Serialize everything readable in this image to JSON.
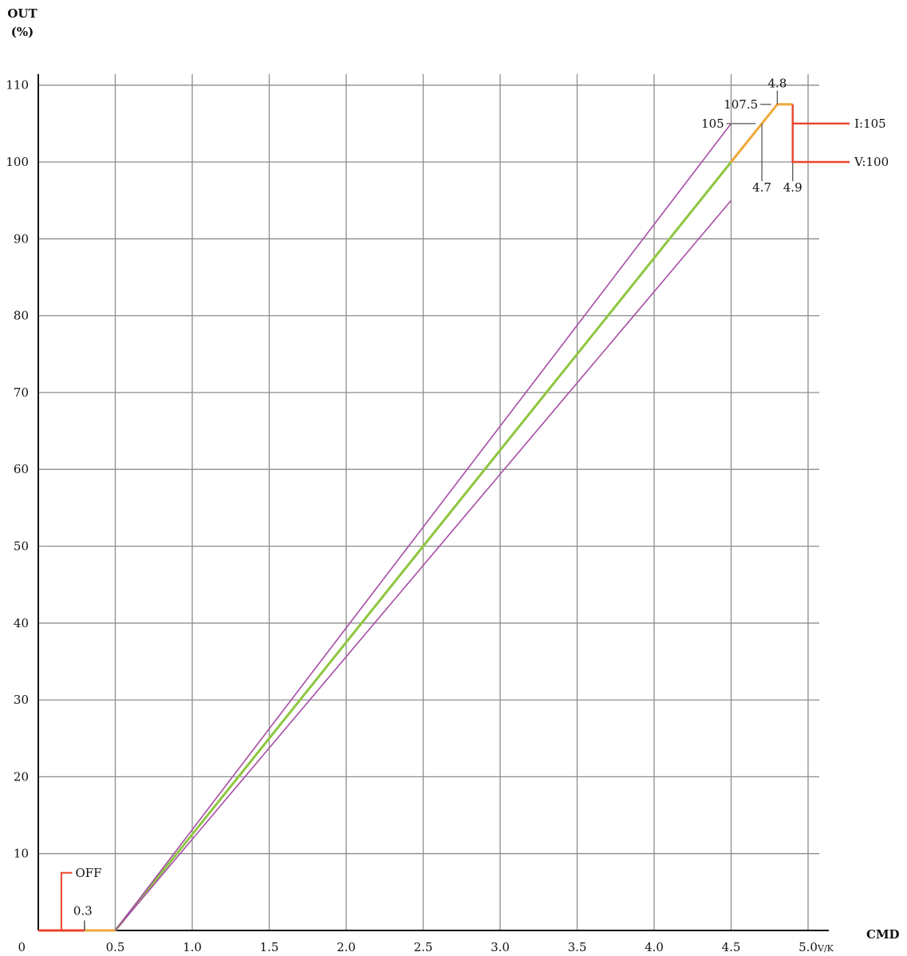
{
  "chart_data": {
    "type": "line",
    "ylabel_line1": "OUT",
    "ylabel_line2": "(%)",
    "xlabel": "CMD",
    "x_unit": "V/K",
    "xlim": [
      0,
      5.0
    ],
    "ylim": [
      0,
      110
    ],
    "x_ticks": [
      "0.5",
      "1.0",
      "1.5",
      "2.0",
      "2.5",
      "3.0",
      "3.5",
      "4.0",
      "4.5",
      "5.0"
    ],
    "x_tick_values": [
      0.5,
      1.0,
      1.5,
      2.0,
      2.5,
      3.0,
      3.5,
      4.0,
      4.5,
      5.0
    ],
    "y_ticks": [
      "0",
      "10",
      "20",
      "30",
      "40",
      "50",
      "60",
      "70",
      "80",
      "90",
      "100",
      "110"
    ],
    "y_tick_values": [
      0,
      10,
      20,
      30,
      40,
      50,
      60,
      70,
      80,
      90,
      100,
      110
    ],
    "grid": true,
    "series": [
      {
        "color": "#e8452c",
        "x": [
          0,
          0.3
        ],
        "y": [
          0,
          0
        ]
      },
      {
        "color": "#f0a83a",
        "x": [
          0.3,
          0.5
        ],
        "y": [
          0,
          0
        ]
      },
      {
        "color": "#8dc63f",
        "x": [
          0.5,
          4.5
        ],
        "y": [
          0,
          100
        ]
      },
      {
        "color": "#f0a83a",
        "x": [
          4.5,
          4.8,
          4.9
        ],
        "y": [
          100,
          107.5,
          107.5
        ]
      },
      {
        "color": "#a64ca6",
        "x": [
          0.5,
          4.5
        ],
        "y": [
          0,
          105
        ]
      },
      {
        "color": "#a64ca6",
        "x": [
          0.5,
          4.5
        ],
        "y": [
          0,
          95
        ]
      }
    ],
    "annotations": {
      "off_label": "OFF",
      "off_value": "0.3",
      "x_4_8": "4.8",
      "y_107_5": "107.5",
      "y_105": "105",
      "x_4_7": "4.7",
      "x_4_9": "4.9",
      "i_label": "I:105",
      "v_label": "V:100"
    },
    "colors": {
      "limit": "#e8452c",
      "transition": "#f0a83a",
      "nominal": "#8dc63f",
      "tolerance": "#a64ca6",
      "grid": "#8d8d8d"
    }
  }
}
